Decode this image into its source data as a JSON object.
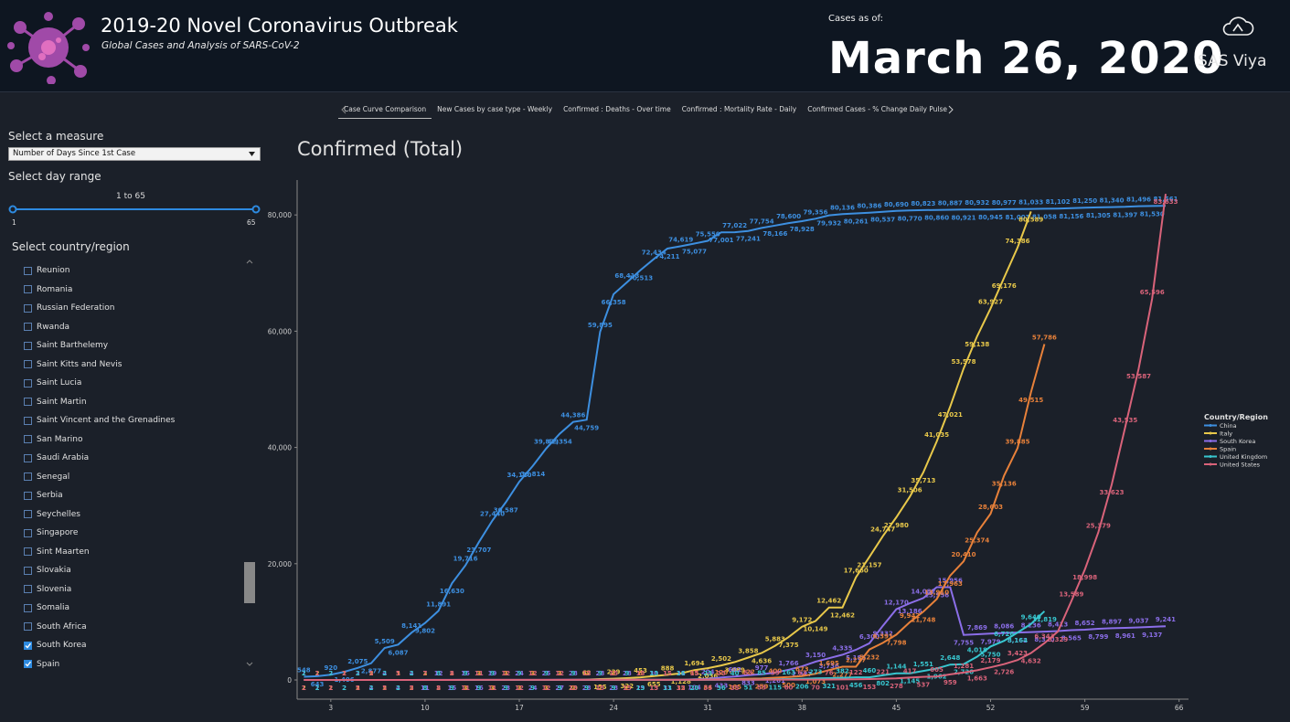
{
  "header": {
    "title": "2019-20 Novel Coronavirus Outbreak",
    "subtitle": "Global Cases and Analysis of SARS-CoV-2",
    "as_of_label": "Cases as of:",
    "date": "March 26, 2020",
    "brand": "SAS Viya"
  },
  "tabs": [
    {
      "label": "Case Curve Comparison",
      "selected": true
    },
    {
      "label": "New Cases by case type - Weekly",
      "selected": false
    },
    {
      "label": "Confirmed : Deaths - Over time",
      "selected": false
    },
    {
      "label": "Confirmed : Mortality Rate - Daily",
      "selected": false
    },
    {
      "label": "Confirmed Cases - % Change Daily Pulse",
      "selected": false
    }
  ],
  "sidebar": {
    "measure_label": "Select a measure",
    "measure_value": "Number of Days Since 1st Case",
    "range_label": "Select day range",
    "range_text": "1 to 65",
    "range_min": "1",
    "range_max": "65",
    "country_label": "Select country/region",
    "countries": [
      {
        "label": "Reunion",
        "checked": false
      },
      {
        "label": "Romania",
        "checked": false
      },
      {
        "label": "Russian Federation",
        "checked": false
      },
      {
        "label": "Rwanda",
        "checked": false
      },
      {
        "label": "Saint Barthelemy",
        "checked": false
      },
      {
        "label": "Saint Kitts and Nevis",
        "checked": false
      },
      {
        "label": "Saint Lucia",
        "checked": false
      },
      {
        "label": "Saint Martin",
        "checked": false
      },
      {
        "label": "Saint Vincent and the Grenadines",
        "checked": false
      },
      {
        "label": "San Marino",
        "checked": false
      },
      {
        "label": "Saudi Arabia",
        "checked": false
      },
      {
        "label": "Senegal",
        "checked": false
      },
      {
        "label": "Serbia",
        "checked": false
      },
      {
        "label": "Seychelles",
        "checked": false
      },
      {
        "label": "Singapore",
        "checked": false
      },
      {
        "label": "Sint Maarten",
        "checked": false
      },
      {
        "label": "Slovakia",
        "checked": false
      },
      {
        "label": "Slovenia",
        "checked": false
      },
      {
        "label": "Somalia",
        "checked": false
      },
      {
        "label": "South Africa",
        "checked": false
      },
      {
        "label": "South Korea",
        "checked": true
      },
      {
        "label": "Spain",
        "checked": true
      }
    ]
  },
  "chart_data": {
    "type": "line",
    "title": "Confirmed (Total)",
    "legend_title": "Country/Region",
    "legend": "right",
    "x": [
      1,
      2,
      3,
      4,
      5,
      6,
      7,
      8,
      9,
      10,
      11,
      12,
      13,
      14,
      15,
      16,
      17,
      18,
      19,
      20,
      21,
      22,
      23,
      24,
      25,
      26,
      27,
      28,
      29,
      30,
      31,
      32,
      33,
      34,
      35,
      36,
      37,
      38,
      39,
      40,
      41,
      42,
      43,
      44,
      45,
      46,
      47,
      48,
      49,
      50,
      51,
      52,
      53,
      54,
      55,
      56,
      57,
      58,
      59,
      60,
      61,
      62,
      63,
      64,
      65
    ],
    "xlim": [
      0.5,
      66.7
    ],
    "xticks": [
      3,
      10,
      17,
      24,
      31,
      38,
      45,
      52,
      59,
      66
    ],
    "ylim": [
      -3300,
      86000
    ],
    "yticks": [
      0,
      {
        "value": 20000,
        "label": "20,000"
      },
      {
        "value": 40000,
        "label": "40,000"
      },
      {
        "value": 60000,
        "label": "60,000"
      },
      {
        "value": 80000,
        "label": "80,000"
      }
    ],
    "series": [
      {
        "name": "China",
        "color": "#3d8fe0",
        "values": [
          548,
          643,
          920,
          1406,
          2075,
          2877,
          5509,
          6087,
          8141,
          9802,
          11891,
          16630,
          19716,
          23707,
          27440,
          30587,
          34110,
          36814,
          39829,
          42354,
          44386,
          44759,
          59895,
          66358,
          68413,
          70513,
          72434,
          74211,
          74619,
          75077,
          75550,
          77001,
          77022,
          77241,
          77754,
          78166,
          78600,
          78928,
          79356,
          79932,
          80136,
          80261,
          80386,
          80537,
          80690,
          80770,
          80823,
          80860,
          80887,
          80921,
          80932,
          80945,
          80977,
          81003,
          81033,
          81058,
          81102,
          81156,
          81250,
          81305,
          81340,
          81397,
          81496,
          81530,
          81561
        ],
        "value_labels": [
          null,
          null,
          null,
          "1,406",
          "2,075",
          "2,877",
          "5,509",
          "6,087",
          "8,141",
          "9,802",
          "11,891",
          "16,630",
          "19,716",
          "23,707",
          "27,440",
          "30,587",
          "34,110",
          "36,814",
          "39,829",
          "42,354",
          "44,386",
          "44,759",
          "59,895",
          "66,358",
          "68,413",
          "70,513",
          "72,434",
          "74,211",
          "74,619",
          "75,077",
          "75,550",
          "77,001",
          "77,022",
          "77,241",
          "77,754",
          "78,166",
          "78,600",
          "78,928",
          "79,356",
          "79,932",
          "80,136",
          "80,261",
          "80,386",
          "80,537",
          "80,690",
          "80,770",
          "80,823",
          "80,860",
          "80,887",
          "80,921",
          "80,932",
          "80,945",
          "80,977",
          "81,003",
          "81,033",
          "81,058",
          "81,102",
          "81,156",
          "81,250",
          "81,305",
          "81,340",
          "81,397",
          "81,496",
          "81,530",
          "81,561"
        ]
      },
      {
        "name": "Italy",
        "color": "#e8c84a",
        "values": [
          2,
          2,
          2,
          2,
          2,
          2,
          2,
          3,
          3,
          3,
          3,
          3,
          3,
          3,
          3,
          3,
          3,
          3,
          3,
          3,
          20,
          62,
          155,
          229,
          322,
          453,
          655,
          888,
          1128,
          1694,
          2036,
          2502,
          3089,
          3858,
          4636,
          5883,
          7375,
          9172,
          10149,
          12462,
          12462,
          17660,
          21157,
          24747,
          27980,
          31506,
          35713,
          41035,
          47021,
          53578,
          59138,
          63927,
          69176,
          74386,
          80589,
          null,
          null,
          null,
          null,
          null,
          null,
          null,
          null,
          null,
          null
        ],
        "value_labels": [
          null,
          null,
          null,
          null,
          null,
          null,
          null,
          null,
          null,
          null,
          null,
          null,
          null,
          null,
          null,
          null,
          null,
          null,
          null,
          null,
          null,
          null,
          null,
          null,
          null,
          null,
          null,
          null,
          "1,128",
          "1,694",
          "2,036",
          "2,502",
          "3,089",
          "3,858",
          "4,636",
          "5,883",
          "7,375",
          "9,172",
          "10,149",
          "12,462",
          "12,462",
          "17,660",
          "21,157",
          "24,747",
          "27,980",
          "31,506",
          "35,713",
          "41,035",
          "47,021",
          "53,578",
          "59,138",
          "63,927",
          "69,176",
          "74,386",
          "80,589",
          null,
          null,
          null,
          null,
          null,
          null,
          null,
          null,
          null,
          null
        ]
      },
      {
        "name": "South Korea",
        "color": "#8b6ee8",
        "values": [
          1,
          1,
          2,
          2,
          3,
          4,
          4,
          4,
          4,
          11,
          12,
          15,
          15,
          16,
          19,
          23,
          24,
          24,
          25,
          27,
          28,
          28,
          28,
          28,
          28,
          29,
          30,
          31,
          31,
          104,
          204,
          433,
          602,
          833,
          977,
          1261,
          1766,
          2337,
          3150,
          3736,
          4335,
          5186,
          6300,
          9332,
          12170,
          13186,
          14082,
          15956,
          15956,
          7755,
          7869,
          7979,
          8086,
          8162,
          8236,
          8320,
          8413,
          8565,
          8652,
          8799,
          8897,
          8961,
          9037,
          9137,
          9241
        ],
        "value_labels": [
          null,
          null,
          null,
          null,
          null,
          null,
          null,
          null,
          null,
          null,
          null,
          null,
          null,
          null,
          null,
          null,
          null,
          null,
          null,
          null,
          null,
          null,
          null,
          null,
          null,
          null,
          null,
          null,
          null,
          null,
          null,
          null,
          null,
          null,
          null,
          "1,261",
          "1,766",
          "2,337",
          "3,150",
          "3,736",
          "4,335",
          "5,186",
          "6,300",
          "9,332",
          "12,170",
          "13,186",
          "14,082",
          "15,956",
          "15,956",
          "7,755",
          "7,869",
          "7,979",
          "8,086",
          "8,162",
          "8,236",
          "8,320",
          "8,413",
          "8,565",
          "8,652",
          "8,799",
          "8,897",
          "8,961",
          "9,037",
          "9,137",
          "9,241"
        ]
      },
      {
        "name": "Spain",
        "color": "#e8813a",
        "values": [
          1,
          1,
          1,
          1,
          1,
          1,
          1,
          1,
          2,
          2,
          2,
          2,
          2,
          2,
          2,
          2,
          2,
          2,
          2,
          2,
          2,
          2,
          2,
          2,
          2,
          6,
          13,
          15,
          32,
          45,
          84,
          120,
          165,
          222,
          259,
          400,
          500,
          673,
          1073,
          1695,
          2277,
          2277,
          5232,
          6391,
          7798,
          9942,
          11748,
          13910,
          17963,
          20410,
          25374,
          28603,
          35136,
          39885,
          49515,
          57786,
          null,
          null,
          null,
          null,
          null,
          null,
          null,
          null,
          null
        ],
        "value_labels": [
          null,
          null,
          null,
          null,
          null,
          null,
          null,
          null,
          null,
          null,
          null,
          null,
          null,
          null,
          null,
          null,
          null,
          null,
          null,
          null,
          null,
          null,
          null,
          null,
          null,
          null,
          null,
          null,
          null,
          null,
          null,
          null,
          null,
          null,
          null,
          null,
          null,
          null,
          "1,073",
          "1,695",
          "2,277",
          "2,277",
          "5,232",
          "6,391",
          "7,798",
          "9,942",
          "11,748",
          "13,910",
          "17,963",
          "20,410",
          "25,374",
          "28,603",
          "35,136",
          "39,885",
          "49,515",
          "57,786",
          null,
          null,
          null,
          null,
          null,
          null,
          null,
          null,
          null
        ]
      },
      {
        "name": "United Kingdom",
        "color": "#38c6cf",
        "values": [
          2,
          2,
          2,
          2,
          2,
          2,
          2,
          2,
          2,
          8,
          8,
          9,
          9,
          9,
          9,
          9,
          9,
          9,
          9,
          9,
          9,
          9,
          9,
          9,
          9,
          13,
          13,
          13,
          16,
          20,
          23,
          36,
          40,
          51,
          85,
          115,
          163,
          206,
          273,
          321,
          382,
          456,
          460,
          802,
          1144,
          1145,
          1551,
          1962,
          2648,
          2720,
          4018,
          5750,
          6726,
          8164,
          9640,
          11819,
          null,
          null,
          null,
          null,
          null,
          null,
          null,
          null,
          null
        ],
        "value_labels": [
          null,
          null,
          null,
          null,
          null,
          null,
          null,
          null,
          null,
          null,
          null,
          null,
          null,
          null,
          null,
          null,
          null,
          null,
          null,
          null,
          null,
          null,
          null,
          null,
          null,
          null,
          null,
          null,
          null,
          null,
          null,
          null,
          null,
          null,
          null,
          null,
          null,
          null,
          null,
          null,
          null,
          null,
          null,
          null,
          "1,144",
          "1,145",
          "1,551",
          "1,962",
          "2,648",
          "2,720",
          "4,018",
          "5,750",
          "6,726",
          "8,164",
          "9,640",
          "11,819",
          null,
          null,
          null,
          null,
          null,
          null,
          null,
          null,
          null
        ]
      },
      {
        "name": "United States",
        "color": "#d9637a",
        "values": [
          1,
          1,
          2,
          2,
          5,
          5,
          5,
          5,
          5,
          7,
          8,
          8,
          11,
          11,
          11,
          12,
          12,
          12,
          12,
          12,
          13,
          13,
          15,
          15,
          15,
          15,
          15,
          15,
          15,
          15,
          35,
          35,
          35,
          53,
          53,
          59,
          60,
          62,
          70,
          76,
          101,
          122,
          153,
          221,
          278,
          417,
          537,
          605,
          959,
          1281,
          1663,
          2179,
          2726,
          3423,
          4632,
          6343,
          8329,
          13589,
          18998,
          25379,
          33623,
          43535,
          53587,
          65596,
          83633
        ],
        "value_labels": [
          null,
          null,
          null,
          null,
          null,
          null,
          null,
          null,
          null,
          null,
          null,
          null,
          null,
          null,
          null,
          null,
          null,
          null,
          null,
          null,
          null,
          null,
          null,
          null,
          null,
          null,
          null,
          null,
          null,
          null,
          null,
          null,
          null,
          null,
          null,
          null,
          null,
          null,
          null,
          null,
          null,
          null,
          null,
          null,
          null,
          null,
          null,
          null,
          null,
          "1,281",
          "1,663",
          "2,179",
          "2,726",
          "3,423",
          "4,632",
          "6,343",
          "8,329",
          "13,589",
          "18,998",
          "25,379",
          "33,623",
          "43,535",
          "53,587",
          "65,596",
          "83,633"
        ]
      }
    ]
  }
}
